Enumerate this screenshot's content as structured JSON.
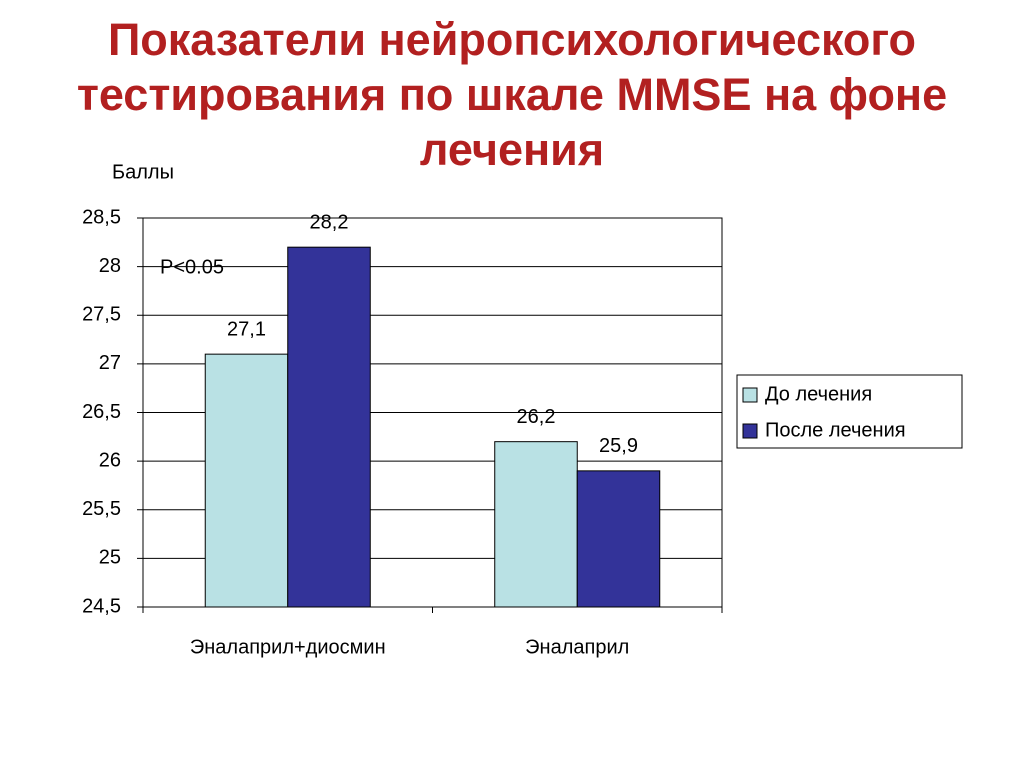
{
  "chart_data": {
    "type": "bar",
    "title": "Показатели нейропсихологического тестирования по шкале MMSE на фоне лечения",
    "y_label": "Баллы",
    "annotation": "P<0.05",
    "categories": [
      "Эналаприл+диосмин",
      "Эналаприл"
    ],
    "series": [
      {
        "name": "До лечения",
        "color": "#b9e1e4",
        "values": [
          27.1,
          26.2
        ],
        "value_labels": [
          "27,1",
          "26,2"
        ]
      },
      {
        "name": "После лечения",
        "color": "#333399",
        "values": [
          28.2,
          25.9
        ],
        "value_labels": [
          "28,2",
          "25,9"
        ]
      }
    ],
    "ylim": [
      24.5,
      28.5
    ],
    "yticks": [
      {
        "value": 24.5,
        "label": "24,5"
      },
      25,
      {
        "value": 25.5,
        "label": "25,5"
      },
      26,
      {
        "value": 26.5,
        "label": "26,5"
      },
      27,
      {
        "value": 27.5,
        "label": "27,5"
      },
      28,
      {
        "value": 28.5,
        "label": "28,5"
      }
    ],
    "grid": true,
    "legend": "right"
  }
}
